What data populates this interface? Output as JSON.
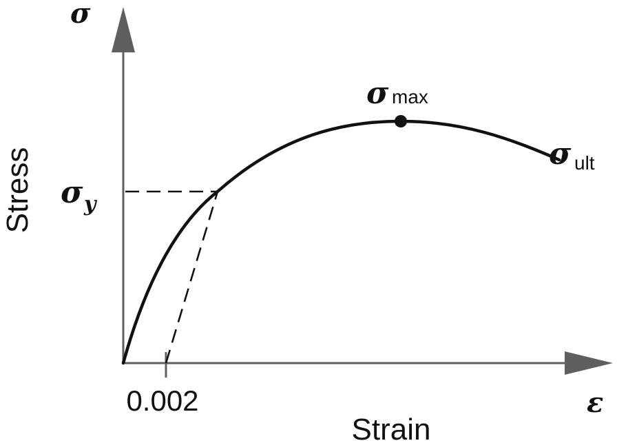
{
  "axes": {
    "y_symbol": "σ",
    "x_symbol": "ε",
    "y_label": "Stress",
    "x_label": "Strain",
    "x_tick_label": "0.002"
  },
  "points": {
    "yield_symbol": "σ",
    "yield_sub": "y",
    "max_symbol": "σ",
    "max_sub": "max",
    "ult_symbol": "σ",
    "ult_sub": "ult"
  },
  "colors": {
    "axis": "#5f5f5f",
    "curve": "#111111"
  }
}
